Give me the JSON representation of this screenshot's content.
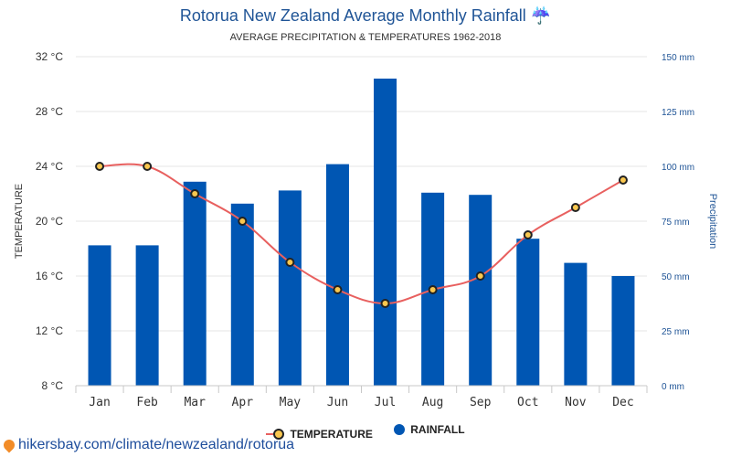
{
  "header": {
    "title": "Rotorua New Zealand Average Monthly Rainfall ☔",
    "subtitle": "AVERAGE PRECIPITATION & TEMPERATURES 1962-2018"
  },
  "legend": {
    "temperature_label": "TEMPERATURE",
    "rainfall_label": "RAINFALL"
  },
  "source": {
    "text": "hikersbay.com/climate/newzealand/rotorua"
  },
  "colors": {
    "title": "#1f5496",
    "bar": "#0056b3",
    "line": "#e8605f",
    "marker_fill": "#f9c74f",
    "marker_stroke": "#222222",
    "right_axis": "#1f5496"
  },
  "chart_data": {
    "type": "bar",
    "categories": [
      "Jan",
      "Feb",
      "Mar",
      "Apr",
      "May",
      "Jun",
      "Jul",
      "Aug",
      "Sep",
      "Oct",
      "Nov",
      "Dec"
    ],
    "series": [
      {
        "name": "RAINFALL",
        "type": "bar",
        "axis": "right",
        "values": [
          64,
          64,
          93,
          83,
          89,
          101,
          140,
          88,
          87,
          67,
          56,
          50
        ]
      },
      {
        "name": "TEMPERATURE",
        "type": "line",
        "axis": "left",
        "values": [
          24,
          24,
          22,
          20,
          17,
          15,
          14,
          15,
          16,
          19,
          21,
          23
        ]
      }
    ],
    "ylabel_left": "TEMPERATURE",
    "ylabel_right": "Precipitation",
    "ylim_left": [
      8,
      32
    ],
    "ylim_right": [
      0,
      150
    ],
    "yticks_left": [
      "8 °C",
      "12 °C",
      "16 °C",
      "20 °C",
      "24 °C",
      "28 °C",
      "32 °C"
    ],
    "yticks_right": [
      "0 mm",
      "25 mm",
      "50 mm",
      "75 mm",
      "100 mm",
      "125 mm",
      "150 mm"
    ],
    "grid": true
  }
}
